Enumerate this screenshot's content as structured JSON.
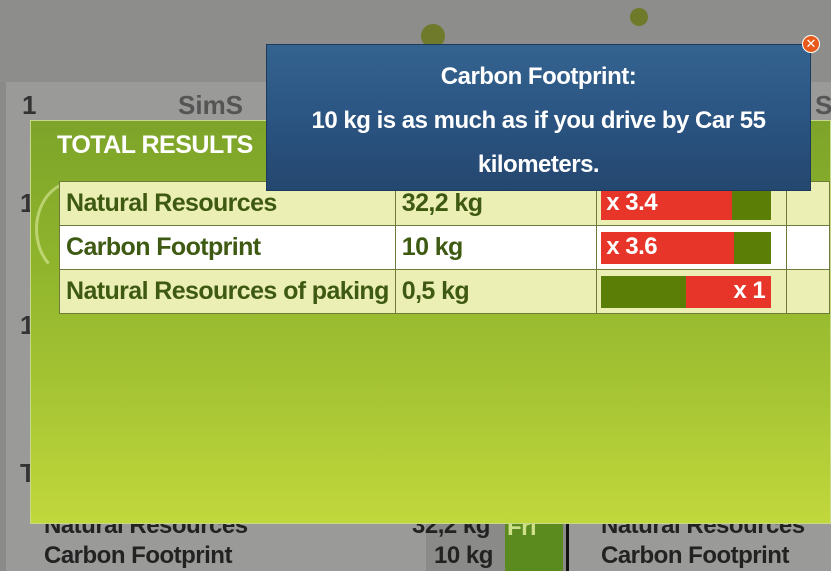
{
  "background": {
    "left_panel": {
      "number_1": "1",
      "header_fragment": "SimS",
      "number_2": "1",
      "number_3": "1",
      "number_4": "T",
      "rows": [
        {
          "label": "Natural Resources",
          "value": "32,2 kg"
        },
        {
          "label": "Carbon Footprint",
          "value": "10 kg"
        }
      ]
    },
    "right_panel": {
      "header_fragment": "S",
      "rows": [
        {
          "label": "Natural Resources"
        },
        {
          "label": "Carbon Footprint"
        }
      ]
    },
    "middle_fragment": "Fri"
  },
  "results": {
    "title": "TOTAL RESULTS",
    "rows": [
      {
        "name": "Natural Resources",
        "value": "32,2 kg",
        "multiplier": "x 3.4",
        "ratio": 0.77,
        "fill_side": "left"
      },
      {
        "name": "Carbon Footprint",
        "value": "10 kg",
        "multiplier": "x 3.6",
        "ratio": 0.78,
        "fill_side": "left"
      },
      {
        "name": "Natural Resources of paking",
        "value": "0,5 kg",
        "multiplier": "x 1",
        "ratio": 0.5,
        "fill_side": "right"
      }
    ]
  },
  "popup": {
    "line1": "Carbon Footprint:",
    "line2": "10 kg  is as much as if you drive by Car 55",
    "line3": "kilometers.",
    "close_symbol": "✕"
  },
  "colors": {
    "bar_red": "#e8352a",
    "bar_green": "#5a7e06",
    "popup_blue": "#2a5380",
    "panel_green": "#8fb42c",
    "close_orange": "#e85a1c"
  }
}
